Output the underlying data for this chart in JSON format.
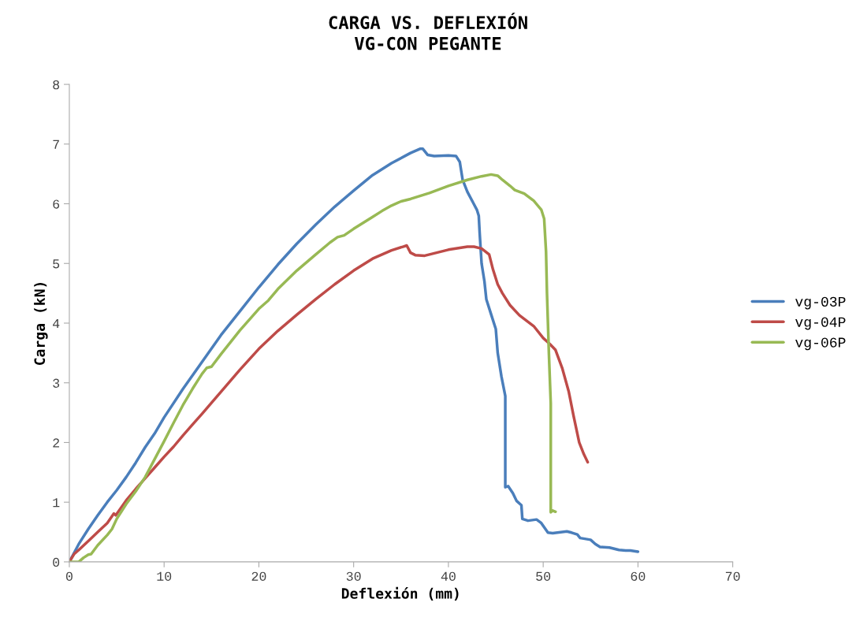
{
  "chart_data": {
    "type": "line",
    "title": "CARGA VS. DEFLEXIÓN\nVG-CON PEGANTE",
    "xlabel": "Deflexión (mm)",
    "ylabel": "Carga (kN)",
    "xlim": [
      0,
      70
    ],
    "xticks": [
      0,
      10,
      20,
      30,
      40,
      50,
      60,
      70
    ],
    "ylim": [
      0,
      8
    ],
    "yticks": [
      0,
      1,
      2,
      3,
      4,
      5,
      6,
      7,
      8
    ],
    "grid": false,
    "legend": "right",
    "marker": "none",
    "line_style": "solid",
    "series": [
      {
        "name": "vg-03P",
        "color": "#4a7ebb",
        "x": [
          0,
          1,
          2,
          3,
          4,
          5,
          6,
          7,
          8,
          9,
          10,
          12,
          14,
          16,
          18,
          20,
          22,
          24,
          26,
          28,
          30,
          32,
          34,
          36,
          37,
          37.3,
          37.8,
          38.5,
          40,
          40.8,
          41.2,
          41.5,
          42,
          42.6,
          43,
          43.2,
          43.3,
          43.5,
          43.8,
          44,
          44.5,
          45,
          45.2,
          45.6,
          46,
          46,
          46.3,
          46.8,
          47.2,
          47.7,
          47.8,
          48.4,
          49.3,
          49.8,
          50.5,
          51,
          52,
          52.5,
          53,
          53.6,
          53.9,
          55,
          55.5,
          56,
          57,
          58,
          58.7,
          59.2,
          60
        ],
        "values": [
          0,
          0.3,
          0.55,
          0.78,
          1.0,
          1.2,
          1.42,
          1.66,
          1.92,
          2.15,
          2.42,
          2.9,
          3.35,
          3.8,
          4.2,
          4.6,
          4.98,
          5.33,
          5.65,
          5.95,
          6.22,
          6.48,
          6.68,
          6.85,
          6.92,
          6.92,
          6.82,
          6.8,
          6.81,
          6.8,
          6.7,
          6.4,
          6.2,
          6.02,
          5.9,
          5.8,
          5.5,
          5.0,
          4.7,
          4.4,
          4.15,
          3.9,
          3.5,
          3.1,
          2.78,
          1.25,
          1.27,
          1.15,
          1.02,
          0.95,
          0.72,
          0.69,
          0.71,
          0.65,
          0.49,
          0.48,
          0.5,
          0.51,
          0.49,
          0.46,
          0.4,
          0.37,
          0.3,
          0.25,
          0.24,
          0.2,
          0.19,
          0.19,
          0.17
        ]
      },
      {
        "name": "vg-04P",
        "color": "#be4b48",
        "x": [
          0,
          0.5,
          1,
          2,
          3,
          4,
          4.7,
          4.9,
          6,
          7,
          8,
          9,
          10,
          11,
          12,
          13,
          14,
          16,
          18,
          20,
          22,
          24,
          26,
          28,
          30,
          32,
          34,
          35.2,
          35.6,
          36,
          36.5,
          37.5,
          38.5,
          40,
          42,
          42.7,
          43.5,
          44.3,
          44.7,
          45.2,
          45.7,
          46.5,
          47.5,
          49,
          50,
          50.7,
          51.3,
          52,
          52.7,
          53.2,
          53.8,
          54.3,
          54.7
        ],
        "values": [
          0,
          0.13,
          0.2,
          0.35,
          0.5,
          0.65,
          0.81,
          0.78,
          1.03,
          1.22,
          1.4,
          1.58,
          1.76,
          1.93,
          2.12,
          2.3,
          2.48,
          2.85,
          3.22,
          3.57,
          3.87,
          4.14,
          4.4,
          4.65,
          4.88,
          5.08,
          5.22,
          5.28,
          5.3,
          5.18,
          5.14,
          5.13,
          5.17,
          5.23,
          5.28,
          5.28,
          5.25,
          5.15,
          4.9,
          4.65,
          4.5,
          4.3,
          4.13,
          3.95,
          3.75,
          3.65,
          3.55,
          3.25,
          2.85,
          2.45,
          2.0,
          1.8,
          1.67
        ]
      },
      {
        "name": "vg-06P",
        "color": "#98b954",
        "x": [
          0,
          1,
          1.5,
          2,
          2.3,
          3,
          4,
          4.5,
          5,
          6,
          7,
          8,
          9,
          10,
          11,
          12,
          13,
          14,
          14.5,
          15,
          16,
          18,
          20,
          21,
          22,
          24,
          26,
          27.5,
          28.3,
          29,
          30,
          32,
          33,
          34,
          35,
          36,
          38,
          40,
          42,
          43.5,
          44.5,
          45.2,
          45.7,
          46.5,
          47,
          48,
          49,
          49.8,
          50.1,
          50.3,
          50.4,
          50.6,
          50.8,
          50.8,
          51,
          51.3
        ],
        "values": [
          0,
          0,
          0.07,
          0.12,
          0.13,
          0.28,
          0.45,
          0.55,
          0.72,
          0.97,
          1.18,
          1.42,
          1.72,
          2.02,
          2.33,
          2.63,
          2.9,
          3.15,
          3.25,
          3.27,
          3.48,
          3.88,
          4.24,
          4.38,
          4.57,
          4.88,
          5.15,
          5.35,
          5.44,
          5.47,
          5.58,
          5.78,
          5.88,
          5.97,
          6.04,
          6.08,
          6.18,
          6.3,
          6.4,
          6.46,
          6.49,
          6.47,
          6.4,
          6.3,
          6.23,
          6.17,
          6.05,
          5.9,
          5.75,
          5.2,
          4.5,
          3.5,
          2.65,
          0.83,
          0.86,
          0.84
        ]
      }
    ]
  }
}
